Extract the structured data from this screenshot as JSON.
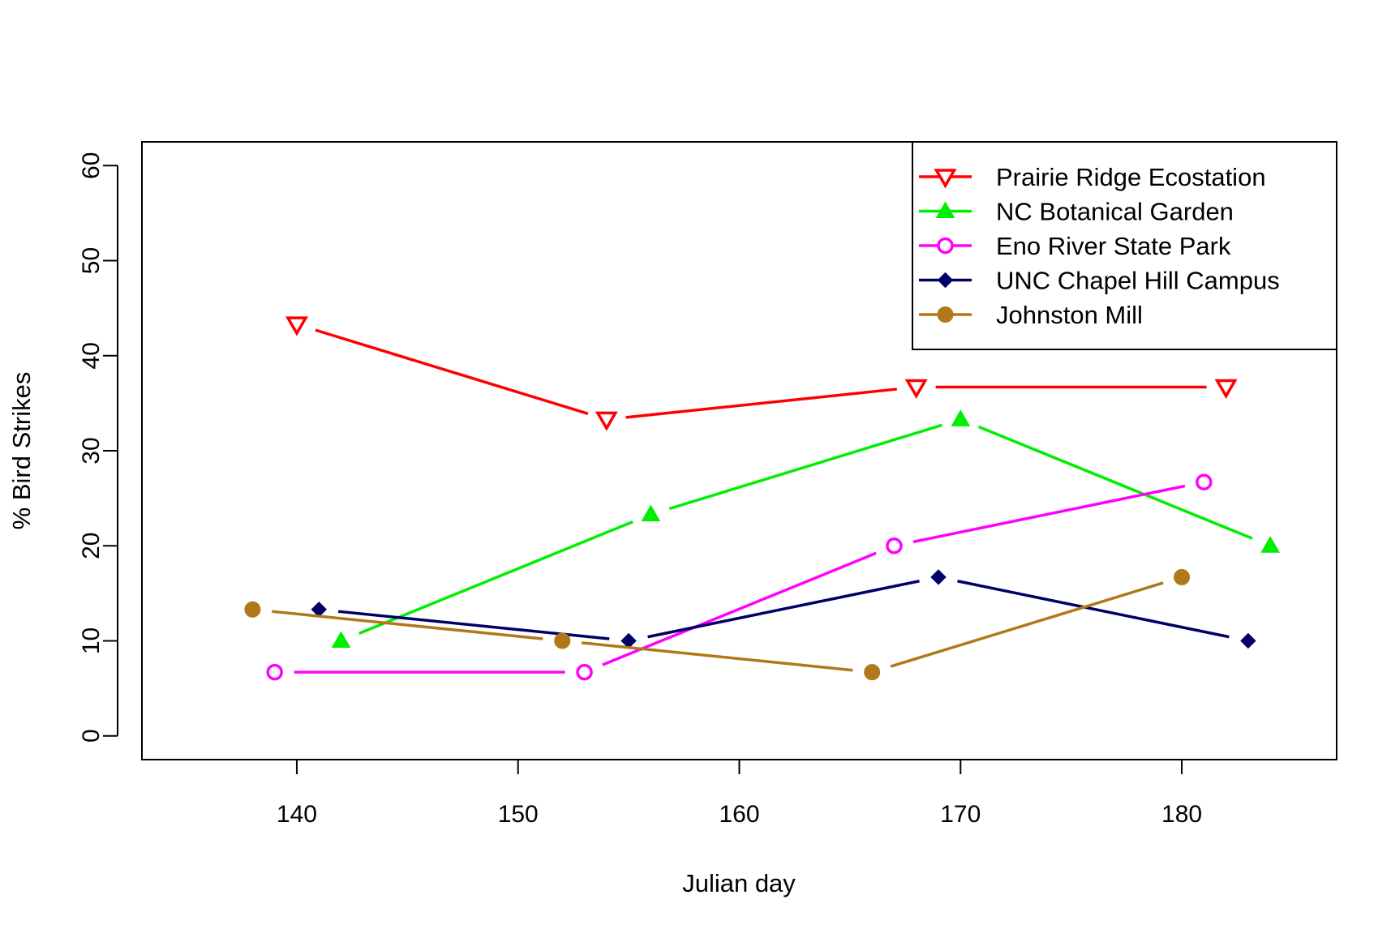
{
  "chart_data": {
    "type": "line",
    "title": "",
    "xlabel": "Julian day",
    "ylabel": "% Bird Strikes",
    "xlim": [
      133,
      187
    ],
    "ylim": [
      -2.5,
      62.5
    ],
    "xticks": [
      140,
      150,
      160,
      170,
      180
    ],
    "yticks": [
      0,
      10,
      20,
      30,
      40,
      50,
      60
    ],
    "legend_position": "top-right",
    "grid": false,
    "series": [
      {
        "name": "Prairie Ridge Ecostation",
        "color": "#ff0000",
        "marker": "triangle-down-open",
        "x": [
          140,
          154,
          168,
          182
        ],
        "y": [
          43.3,
          33.3,
          36.7,
          36.7
        ]
      },
      {
        "name": "NC Botanical Garden",
        "color": "#00ee00",
        "marker": "triangle-up-filled",
        "x": [
          142,
          156,
          170,
          184
        ],
        "y": [
          10.0,
          23.3,
          33.3,
          20.0
        ]
      },
      {
        "name": "Eno River State Park",
        "color": "#ff00ff",
        "marker": "circle-open",
        "x": [
          139,
          153,
          167,
          181
        ],
        "y": [
          6.7,
          6.7,
          20.0,
          26.7
        ]
      },
      {
        "name": "UNC Chapel Hill Campus",
        "color": "#000066",
        "marker": "diamond-filled",
        "x": [
          141,
          155,
          169,
          183
        ],
        "y": [
          13.3,
          10.0,
          16.7,
          10.0
        ]
      },
      {
        "name": "Johnston Mill",
        "color": "#b07818",
        "marker": "circle-filled",
        "x": [
          138,
          152,
          166,
          180
        ],
        "y": [
          13.3,
          10.0,
          6.7,
          16.7
        ]
      }
    ]
  }
}
